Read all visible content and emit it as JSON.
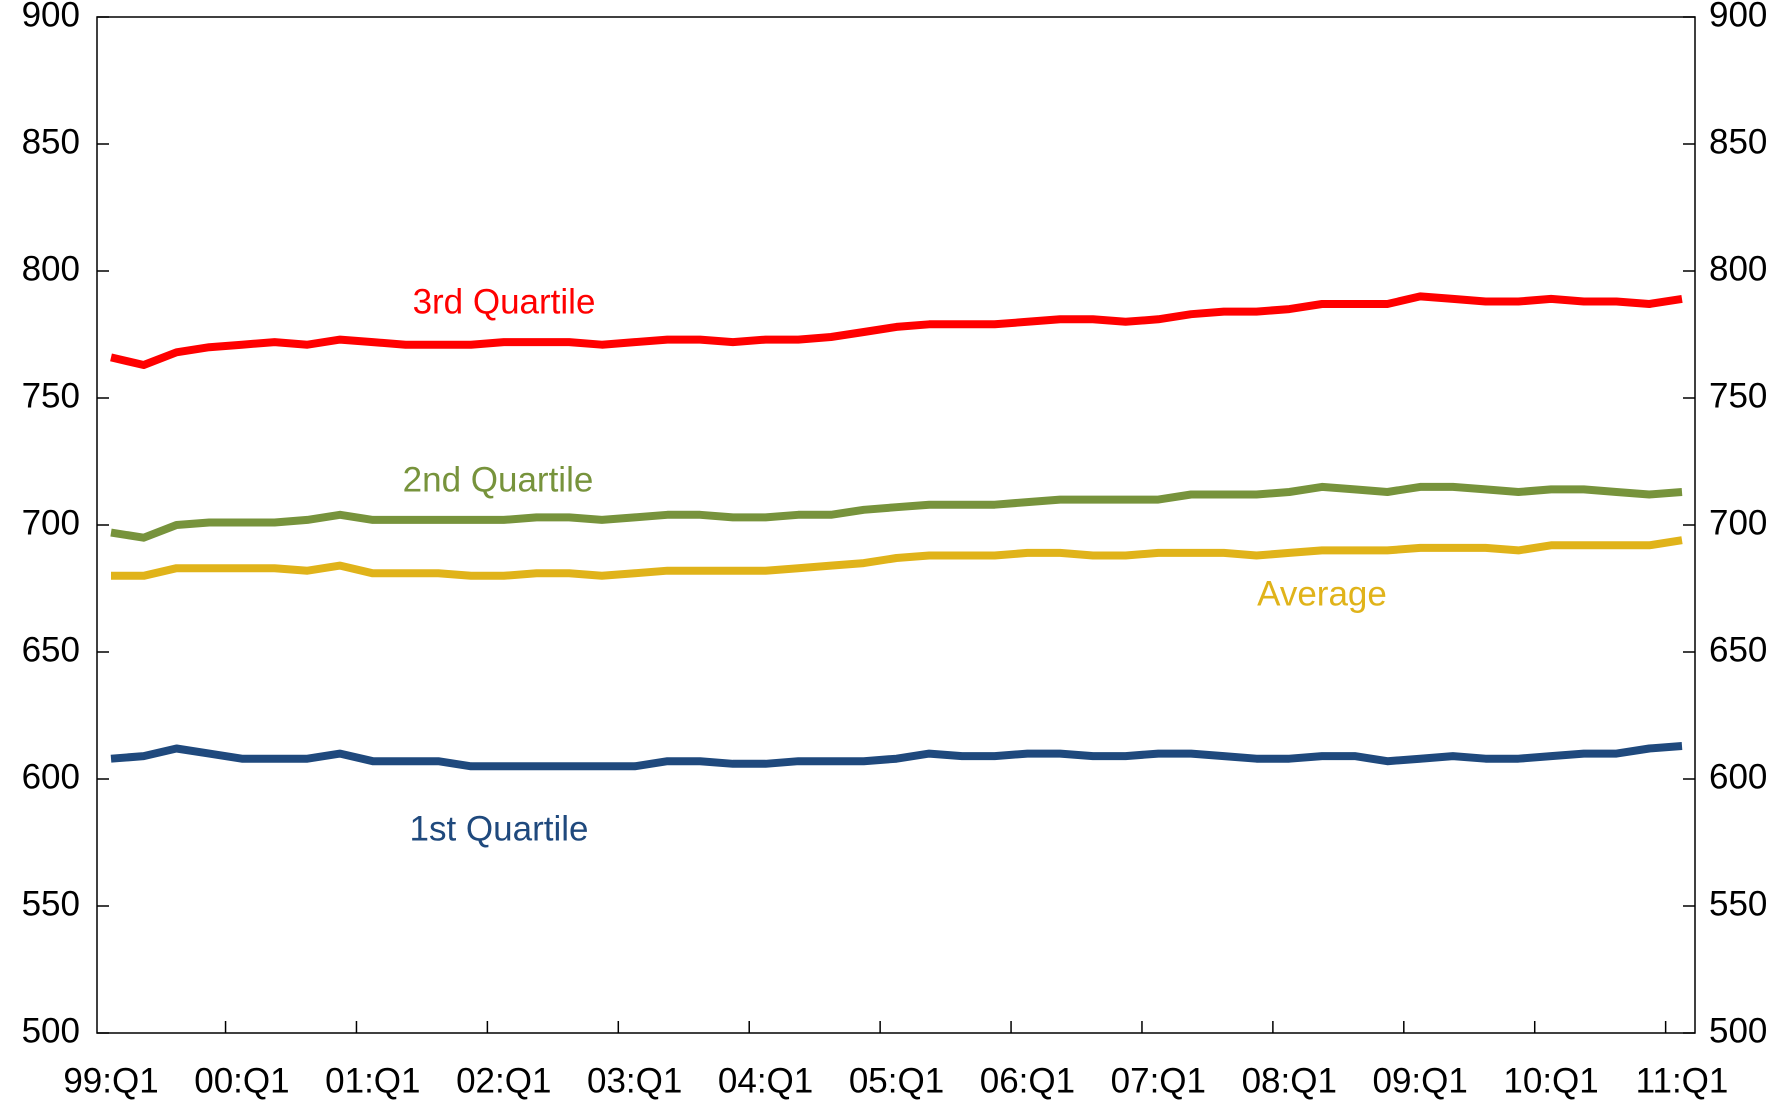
{
  "chart_data": {
    "type": "line",
    "categories": [
      "99:Q1",
      null,
      null,
      null,
      "00:Q1",
      null,
      null,
      null,
      "01:Q1",
      null,
      null,
      null,
      "02:Q1",
      null,
      null,
      null,
      "03:Q1",
      null,
      null,
      null,
      "04:Q1",
      null,
      null,
      null,
      "05:Q1",
      null,
      null,
      null,
      "06:Q1",
      null,
      null,
      null,
      "07:Q1",
      null,
      null,
      null,
      "08:Q1",
      null,
      null,
      null,
      "09:Q1",
      null,
      null,
      null,
      "10:Q1",
      null,
      null,
      null,
      "11:Q1"
    ],
    "series": [
      {
        "name": "3rd Quartile",
        "color": "#ff0000",
        "values": [
          766,
          763,
          768,
          770,
          771,
          772,
          771,
          773,
          772,
          771,
          771,
          771,
          772,
          772,
          772,
          771,
          772,
          773,
          773,
          772,
          773,
          773,
          774,
          776,
          778,
          779,
          779,
          779,
          780,
          781,
          781,
          780,
          781,
          783,
          784,
          784,
          785,
          787,
          787,
          787,
          790,
          789,
          788,
          788,
          789,
          788,
          788,
          787,
          789
        ]
      },
      {
        "name": "2nd Quartile",
        "color": "#77933c",
        "values": [
          697,
          695,
          700,
          701,
          701,
          701,
          702,
          704,
          702,
          702,
          702,
          702,
          702,
          703,
          703,
          702,
          703,
          704,
          704,
          703,
          703,
          704,
          704,
          706,
          707,
          708,
          708,
          708,
          709,
          710,
          710,
          710,
          710,
          712,
          712,
          712,
          713,
          715,
          714,
          713,
          715,
          715,
          714,
          713,
          714,
          714,
          713,
          712,
          713
        ]
      },
      {
        "name": "Average",
        "color": "#e0b31a",
        "values": [
          680,
          680,
          683,
          683,
          683,
          683,
          682,
          684,
          681,
          681,
          681,
          680,
          680,
          681,
          681,
          680,
          681,
          682,
          682,
          682,
          682,
          683,
          684,
          685,
          687,
          688,
          688,
          688,
          689,
          689,
          688,
          688,
          689,
          689,
          689,
          688,
          689,
          690,
          690,
          690,
          691,
          691,
          691,
          690,
          692,
          692,
          692,
          692,
          694
        ]
      },
      {
        "name": "1st Quartile",
        "color": "#1f497d",
        "values": [
          608,
          609,
          612,
          610,
          608,
          608,
          608,
          610,
          607,
          607,
          607,
          605,
          605,
          605,
          605,
          605,
          605,
          607,
          607,
          606,
          606,
          607,
          607,
          607,
          608,
          610,
          609,
          609,
          610,
          610,
          609,
          609,
          610,
          610,
          609,
          608,
          608,
          609,
          609,
          607,
          608,
          609,
          608,
          608,
          609,
          610,
          610,
          612,
          613
        ]
      }
    ],
    "ylim": [
      500,
      900
    ],
    "yticks": [
      500,
      550,
      600,
      650,
      700,
      750,
      800,
      850,
      900
    ]
  }
}
